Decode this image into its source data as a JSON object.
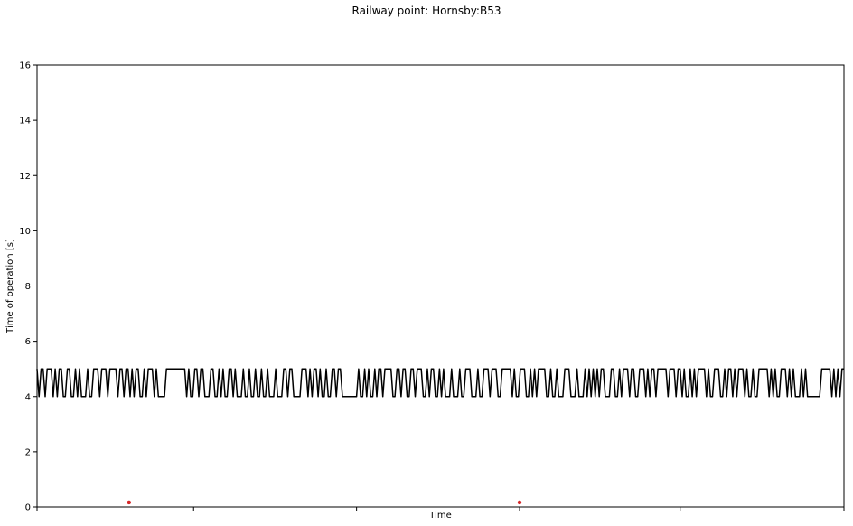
{
  "chart_data": {
    "type": "line",
    "title": "Railway point: Hornsby:B53",
    "xlabel": "Time",
    "ylabel": "Time of operation [s]",
    "ylim": [
      0,
      16
    ],
    "yticks": [
      0,
      2,
      4,
      6,
      8,
      10,
      12,
      14,
      16
    ],
    "xticks_labeled": false,
    "grid": false,
    "series": [
      {
        "style": "line",
        "color": "#000000",
        "description_points": "~400 measurements alternating between 4 and 5 seconds",
        "values_pattern": [
          4,
          5
        ],
        "sample_count": 400,
        "seed": 53
      },
      {
        "style": "scatter",
        "color": "#d62728",
        "points": [
          {
            "x_frac": 0.114,
            "y": 0.1
          },
          {
            "x_frac": 0.598,
            "y": 0.1
          }
        ]
      }
    ]
  }
}
